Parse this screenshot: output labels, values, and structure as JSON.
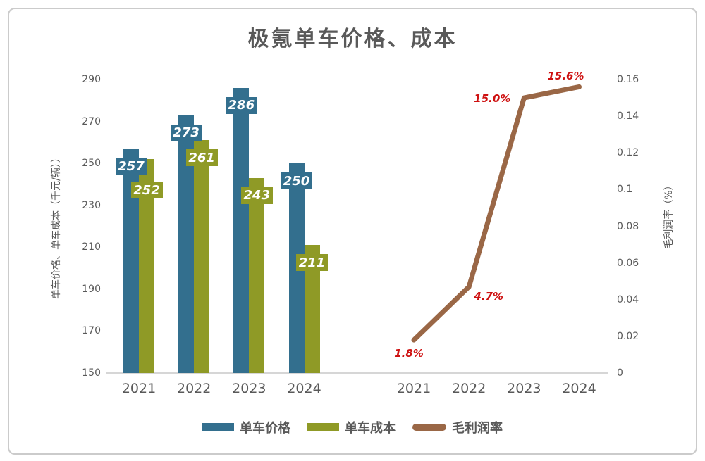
{
  "title": "极氪单车价格、成本",
  "colors": {
    "text": "#595959",
    "axis_line": "#d6d6d6",
    "border": "#cbcbcb",
    "bar_price": "#336f8e",
    "bar_cost": "#8f9a26",
    "line_margin": "#9a6746",
    "line_label": "#ce1111",
    "bar_label_text": "#ffffff"
  },
  "chart_data": {
    "type": "combo",
    "title": "极氪单车价格、成本",
    "categories": [
      "2021",
      "2022",
      "2023",
      "2024"
    ],
    "grid": false,
    "legend_position": "bottom",
    "bar_chart": {
      "type": "bar",
      "ylabel": "单车价格、单车成本（千元/辆））",
      "ylim": [
        150,
        290
      ],
      "yticks": [
        {
          "v": 290,
          "label": "290"
        },
        {
          "v": 270,
          "label": "270"
        },
        {
          "v": 250,
          "label": "250"
        },
        {
          "v": 230,
          "label": "230"
        },
        {
          "v": 210,
          "label": "210"
        },
        {
          "v": 190,
          "label": "190"
        },
        {
          "v": 170,
          "label": "170"
        },
        {
          "v": 150,
          "label": "150"
        }
      ],
      "series": [
        {
          "name": "单车价格",
          "color": "#336f8e",
          "values": [
            257,
            273,
            286,
            250
          ],
          "labels": [
            "257",
            "273",
            "286",
            "250"
          ]
        },
        {
          "name": "单车成本",
          "color": "#8f9a26",
          "values": [
            252,
            261,
            243,
            211
          ],
          "labels": [
            "252",
            "261",
            "243",
            "211"
          ]
        }
      ]
    },
    "line_chart": {
      "type": "line",
      "ylabel": "毛利润率（%）",
      "ylim": [
        0,
        0.16
      ],
      "yticks": [
        {
          "v": 0.16,
          "label": "0.16"
        },
        {
          "v": 0.14,
          "label": "0.14"
        },
        {
          "v": 0.12,
          "label": "0.12"
        },
        {
          "v": 0.1,
          "label": "0.1"
        },
        {
          "v": 0.08,
          "label": "0.08"
        },
        {
          "v": 0.06,
          "label": "0.06"
        },
        {
          "v": 0.04,
          "label": "0.04"
        },
        {
          "v": 0.02,
          "label": "0.02"
        },
        {
          "v": 0,
          "label": "0"
        }
      ],
      "series": [
        {
          "name": "毛利润率",
          "color": "#9a6746",
          "values": [
            0.018,
            0.047,
            0.15,
            0.156
          ],
          "labels": [
            "1.8%",
            "4.7%",
            "15.0%",
            "15.6%"
          ],
          "label_color": "#ce1111"
        }
      ]
    },
    "legend": [
      {
        "label": "单车价格",
        "color": "#336f8e",
        "shape": "bar"
      },
      {
        "label": "单车成本",
        "color": "#8f9a26",
        "shape": "bar"
      },
      {
        "label": "毛利润率",
        "color": "#9a6746",
        "shape": "line"
      }
    ]
  }
}
